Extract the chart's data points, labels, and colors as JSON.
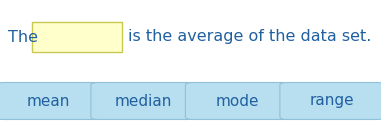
{
  "text_before": "The",
  "text_after": "is the average of the data set.",
  "blank_box_color": "#ffffcc",
  "blank_box_edge_color": "#c8c850",
  "button_labels": [
    "mean",
    "median",
    "mode",
    "range"
  ],
  "button_bg_color": "#b8dff0",
  "button_edge_color": "#90c0d8",
  "text_color": "#2060a0",
  "background_color": "#ffffff",
  "main_text_fontsize": 11.5,
  "button_fontsize": 11
}
